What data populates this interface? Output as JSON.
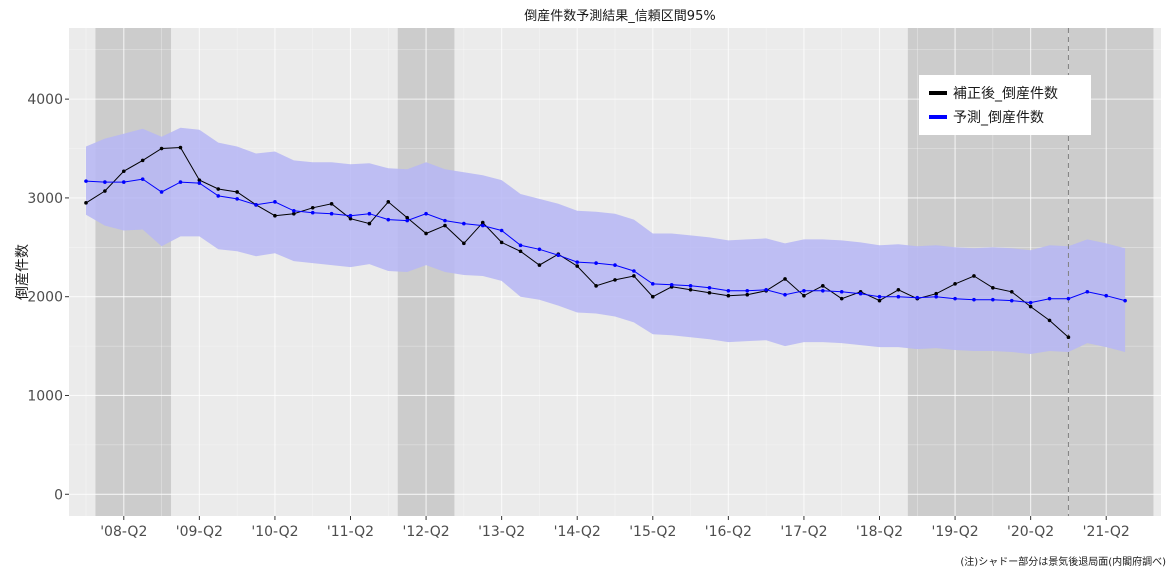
{
  "chart_data": {
    "type": "line",
    "title": "倒産件数予測結果_信頼区間95%",
    "xlabel": "",
    "ylabel": "倒産件数",
    "ylim": [
      -220,
      4720
    ],
    "y_ticks": [
      0,
      1000,
      2000,
      3000,
      4000
    ],
    "x_start": "2007-Q4",
    "x_tick_labels": [
      "'08-Q2",
      "'09-Q2",
      "'10-Q2",
      "'11-Q2",
      "'12-Q2",
      "'13-Q2",
      "'14-Q2",
      "'15-Q2",
      "'16-Q2",
      "'17-Q2",
      "'18-Q2",
      "'19-Q2",
      "'20-Q2",
      "'21-Q2"
    ],
    "x_tick_positions": [
      3,
      7,
      11,
      15,
      19,
      23,
      27,
      31,
      35,
      39,
      43,
      47,
      51,
      55
    ],
    "grid": true,
    "legend_position": "top-right",
    "recession_shading": [
      [
        1.5,
        5.5
      ],
      [
        17.5,
        20.5
      ],
      [
        44.5,
        57.5
      ]
    ],
    "forecast_origin": 53,
    "series": [
      {
        "name": "補正後_倒産件数",
        "color": "#000000",
        "x": [
          1,
          2,
          3,
          4,
          5,
          6,
          7,
          8,
          9,
          10,
          11,
          12,
          13,
          14,
          15,
          16,
          17,
          18,
          19,
          20,
          21,
          22,
          23,
          24,
          25,
          26,
          27,
          28,
          29,
          30,
          31,
          32,
          33,
          34,
          35,
          36,
          37,
          38,
          39,
          40,
          41,
          42,
          43,
          44,
          45,
          46,
          47,
          48,
          49,
          50,
          51,
          52,
          53
        ],
        "values": [
          2950,
          3070,
          3270,
          3380,
          3500,
          3510,
          3180,
          3090,
          3060,
          2930,
          2820,
          2840,
          2900,
          2940,
          2790,
          2740,
          2960,
          2800,
          2640,
          2720,
          2540,
          2750,
          2550,
          2460,
          2320,
          2430,
          2310,
          2110,
          2170,
          2210,
          2000,
          2100,
          2070,
          2040,
          2010,
          2020,
          2060,
          2180,
          2010,
          2110,
          1980,
          2050,
          1960,
          2070,
          1980,
          2030,
          2130,
          2210,
          2090,
          2050,
          1900,
          1760,
          1590
        ]
      },
      {
        "name": "予測_倒産件数",
        "color": "#0000ff",
        "x": [
          1,
          2,
          3,
          4,
          5,
          6,
          7,
          8,
          9,
          10,
          11,
          12,
          13,
          14,
          15,
          16,
          17,
          18,
          19,
          20,
          21,
          22,
          23,
          24,
          25,
          26,
          27,
          28,
          29,
          30,
          31,
          32,
          33,
          34,
          35,
          36,
          37,
          38,
          39,
          40,
          41,
          42,
          43,
          44,
          45,
          46,
          47,
          48,
          49,
          50,
          51,
          52,
          53,
          54,
          55,
          56
        ],
        "values": [
          3170,
          3160,
          3160,
          3190,
          3060,
          3160,
          3150,
          3020,
          2990,
          2930,
          2960,
          2870,
          2850,
          2840,
          2820,
          2840,
          2780,
          2770,
          2840,
          2770,
          2740,
          2720,
          2670,
          2520,
          2480,
          2420,
          2350,
          2340,
          2320,
          2260,
          2130,
          2120,
          2110,
          2090,
          2060,
          2060,
          2070,
          2020,
          2060,
          2060,
          2050,
          2030,
          2000,
          2000,
          1990,
          2000,
          1980,
          1970,
          1970,
          1960,
          1940,
          1980,
          1980,
          2050,
          2010,
          1960
        ]
      }
    ],
    "confidence_band": {
      "name": "信頼区間95%",
      "color": "#b6b6f5",
      "x": [
        1,
        2,
        3,
        4,
        5,
        6,
        7,
        8,
        9,
        10,
        11,
        12,
        13,
        14,
        15,
        16,
        17,
        18,
        19,
        20,
        21,
        22,
        23,
        24,
        25,
        26,
        27,
        28,
        29,
        30,
        31,
        32,
        33,
        34,
        35,
        36,
        37,
        38,
        39,
        40,
        41,
        42,
        43,
        44,
        45,
        46,
        47,
        48,
        49,
        50,
        51,
        52,
        53,
        54,
        55,
        56
      ],
      "upper": [
        3520,
        3600,
        3650,
        3700,
        3620,
        3710,
        3690,
        3560,
        3520,
        3450,
        3470,
        3380,
        3360,
        3360,
        3340,
        3350,
        3300,
        3290,
        3360,
        3290,
        3260,
        3230,
        3180,
        3040,
        2990,
        2940,
        2870,
        2860,
        2840,
        2780,
        2640,
        2640,
        2620,
        2600,
        2570,
        2580,
        2590,
        2540,
        2580,
        2580,
        2570,
        2550,
        2520,
        2530,
        2510,
        2520,
        2500,
        2490,
        2500,
        2490,
        2470,
        2520,
        2510,
        2580,
        2540,
        2490
      ],
      "lower": [
        2830,
        2720,
        2670,
        2680,
        2510,
        2610,
        2610,
        2480,
        2460,
        2410,
        2440,
        2360,
        2340,
        2320,
        2300,
        2330,
        2260,
        2250,
        2320,
        2250,
        2220,
        2210,
        2160,
        2000,
        1970,
        1910,
        1840,
        1830,
        1800,
        1740,
        1620,
        1610,
        1590,
        1570,
        1540,
        1550,
        1560,
        1500,
        1540,
        1540,
        1530,
        1510,
        1490,
        1490,
        1470,
        1480,
        1460,
        1450,
        1450,
        1440,
        1420,
        1450,
        1440,
        1530,
        1490,
        1440
      ]
    }
  },
  "note": "(注)シャドー部分は景気後退局面(内閣府調べ)"
}
